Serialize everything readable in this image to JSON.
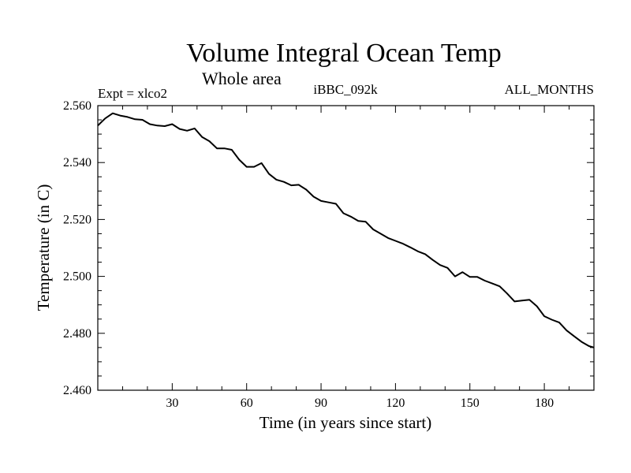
{
  "chart_data": {
    "type": "line",
    "title": "Volume Integral Ocean Temp",
    "subtitle": "Whole area",
    "experiment_label": "Expt = xlco2",
    "run_id": "iBBC_092k",
    "months_label": "ALL_MONTHS",
    "xlabel": "Time (in years since start)",
    "ylabel": "Temperature (in C)",
    "xlim": [
      0,
      200
    ],
    "ylim": [
      2.46,
      2.56
    ],
    "xticks": [
      30,
      60,
      90,
      120,
      150,
      180
    ],
    "xtick_labels": [
      "30",
      "60",
      "90",
      "120",
      "150",
      "180"
    ],
    "yticks": [
      2.46,
      2.48,
      2.5,
      2.52,
      2.54,
      2.56
    ],
    "ytick_labels": [
      "2.460",
      "2.480",
      "2.500",
      "2.520",
      "2.540",
      "2.560"
    ],
    "grid": false,
    "line_color": "#000000",
    "series": [
      {
        "name": "Volume Integral Ocean Temp",
        "x": [
          0,
          3,
          6,
          9,
          12,
          15,
          18,
          21,
          24,
          27,
          30,
          33,
          36,
          39,
          42,
          45,
          48,
          51,
          54,
          57,
          60,
          63,
          66,
          69,
          72,
          75,
          78,
          81,
          84,
          87,
          90,
          93,
          96,
          99,
          102,
          105,
          108,
          111,
          114,
          117,
          120,
          123,
          126,
          129,
          132,
          135,
          138,
          141,
          144,
          147,
          150,
          153,
          156,
          159,
          162,
          165,
          168,
          171,
          174,
          177,
          180,
          183,
          186,
          189,
          192,
          195,
          198,
          200
        ],
        "values": [
          2.553,
          2.5555,
          2.5573,
          2.5565,
          2.556,
          2.5552,
          2.555,
          2.5535,
          2.553,
          2.5528,
          2.5535,
          2.5518,
          2.5512,
          2.552,
          2.549,
          2.5475,
          2.545,
          2.545,
          2.5445,
          2.541,
          2.5385,
          2.5385,
          2.5398,
          2.536,
          2.534,
          2.5332,
          2.532,
          2.5322,
          2.5305,
          2.528,
          2.5265,
          2.526,
          2.5255,
          2.5222,
          2.521,
          2.5195,
          2.5192,
          2.5165,
          2.515,
          2.5135,
          2.5125,
          2.5115,
          2.5102,
          2.5088,
          2.5078,
          2.5058,
          2.504,
          2.503,
          2.5,
          2.5015,
          2.4998,
          2.4998,
          2.4985,
          2.4975,
          2.4965,
          2.494,
          2.4912,
          2.4915,
          2.4918,
          2.4895,
          2.486,
          2.4848,
          2.4838,
          2.481,
          2.479,
          2.477,
          2.4755,
          2.475
        ]
      }
    ]
  }
}
